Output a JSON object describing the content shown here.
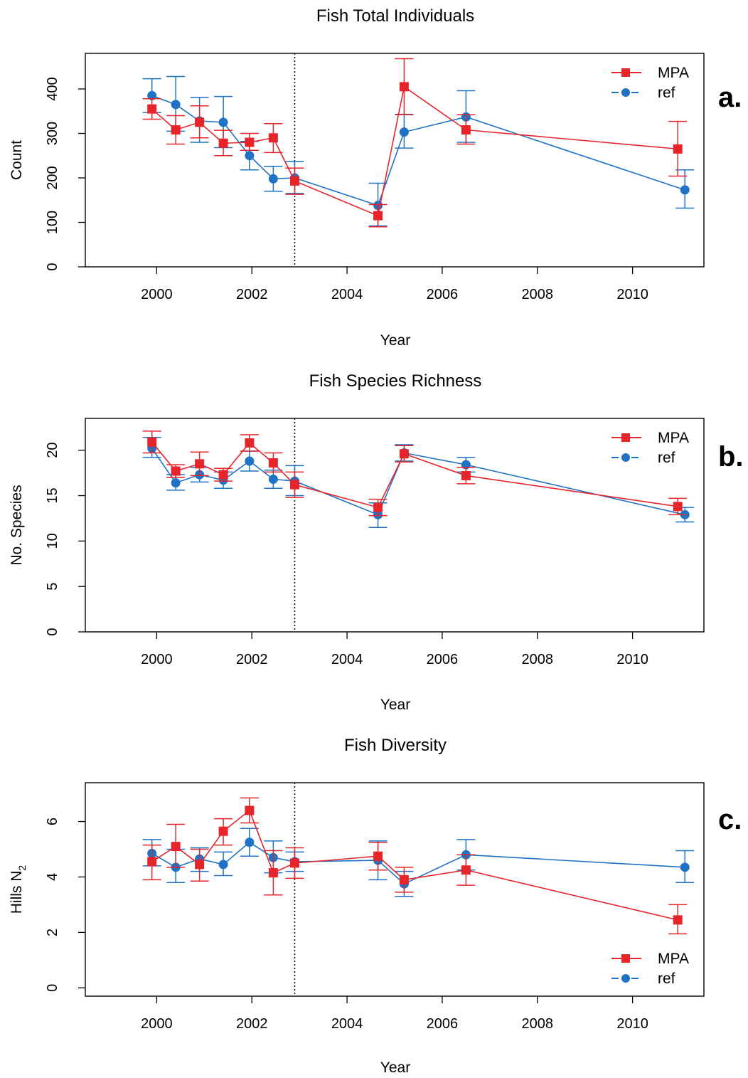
{
  "colors": {
    "mpa": "#e8242b",
    "ref": "#1f72c4",
    "axis": "#000000",
    "vline": "#000000"
  },
  "panels": [
    {
      "title": "Fish Total Individuals",
      "letter": "a.",
      "xlabel": "Year",
      "ylabel_main": "Count",
      "ylabel_sub": ""
    },
    {
      "title": "Fish Species Richness",
      "letter": "b.",
      "xlabel": "Year",
      "ylabel_main": "No. Species",
      "ylabel_sub": ""
    },
    {
      "title": "Fish Diversity",
      "letter": "c.",
      "xlabel": "Year",
      "ylabel_main": "Hills N",
      "ylabel_sub": "2"
    }
  ],
  "chart_data": [
    {
      "type": "line",
      "title": "Fish Total Individuals",
      "xlabel": "Year",
      "ylabel": "Count",
      "xlim": [
        1998.5,
        2011.5
      ],
      "ylim": [
        0,
        480
      ],
      "xticks": [
        2000,
        2002,
        2004,
        2006,
        2008,
        2010
      ],
      "yticks": [
        0,
        100,
        200,
        300,
        400
      ],
      "vline": 2002.9,
      "legend_position": "top-right",
      "series": [
        {
          "name": "MPA",
          "marker": "square",
          "color": "#e8242b",
          "x": [
            1999.9,
            2000.4,
            2000.9,
            2001.4,
            2001.95,
            2002.45,
            2002.9,
            2004.65,
            2005.2,
            2006.5,
            2010.95
          ],
          "y": [
            355,
            308,
            325,
            278,
            280,
            290,
            193,
            115,
            405,
            308,
            265
          ],
          "err_low": [
            332,
            276,
            290,
            250,
            262,
            257,
            163,
            90,
            342,
            276,
            204
          ],
          "err_high": [
            378,
            340,
            362,
            307,
            300,
            322,
            222,
            140,
            468,
            342,
            327
          ]
        },
        {
          "name": "ref",
          "marker": "circle",
          "color": "#1f72c4",
          "x": [
            1999.9,
            2000.4,
            2000.9,
            2001.4,
            2001.95,
            2002.45,
            2002.9,
            2004.65,
            2005.2,
            2006.5,
            2011.1
          ],
          "y": [
            385,
            365,
            328,
            325,
            250,
            198,
            200,
            138,
            303,
            337,
            173
          ],
          "err_low": [
            347,
            305,
            280,
            268,
            218,
            170,
            165,
            92,
            267,
            280,
            132
          ],
          "err_high": [
            423,
            428,
            381,
            383,
            282,
            226,
            237,
            188,
            343,
            396,
            218
          ]
        }
      ]
    },
    {
      "type": "line",
      "title": "Fish Species Richness",
      "xlabel": "Year",
      "ylabel": "No. Species",
      "xlim": [
        1998.5,
        2011.5
      ],
      "ylim": [
        0,
        23.5
      ],
      "xticks": [
        2000,
        2002,
        2004,
        2006,
        2008,
        2010
      ],
      "yticks": [
        0,
        5,
        10,
        15,
        20
      ],
      "vline": 2002.9,
      "legend_position": "top-right",
      "series": [
        {
          "name": "MPA",
          "marker": "square",
          "color": "#e8242b",
          "x": [
            1999.9,
            2000.4,
            2000.9,
            2001.4,
            2001.95,
            2002.45,
            2002.9,
            2004.65,
            2005.2,
            2006.5,
            2010.95
          ],
          "y": [
            20.9,
            17.7,
            18.5,
            17.3,
            20.8,
            18.6,
            16.2,
            13.7,
            19.6,
            17.2,
            13.8
          ],
          "err_low": [
            19.7,
            17.0,
            17.2,
            16.6,
            19.9,
            17.6,
            14.8,
            12.8,
            18.7,
            16.3,
            12.9
          ],
          "err_high": [
            22.1,
            18.4,
            19.8,
            18.0,
            21.7,
            19.7,
            17.6,
            14.6,
            20.5,
            18.1,
            14.7
          ]
        },
        {
          "name": "ref",
          "marker": "circle",
          "color": "#1f72c4",
          "x": [
            1999.9,
            2000.4,
            2000.9,
            2001.4,
            2001.95,
            2002.45,
            2002.9,
            2004.65,
            2005.2,
            2006.5,
            2011.1
          ],
          "y": [
            20.2,
            16.4,
            17.3,
            16.7,
            18.8,
            16.8,
            16.6,
            12.9,
            19.7,
            18.4,
            12.9
          ],
          "err_low": [
            19.2,
            15.6,
            16.5,
            15.8,
            17.7,
            15.8,
            15.0,
            11.5,
            18.8,
            17.6,
            12.1
          ],
          "err_high": [
            21.4,
            17.3,
            18.1,
            17.6,
            19.9,
            17.8,
            18.3,
            14.2,
            20.6,
            19.2,
            13.7
          ]
        }
      ]
    },
    {
      "type": "line",
      "title": "Fish Diversity",
      "xlabel": "Year",
      "ylabel": "Hills N2",
      "xlim": [
        1998.5,
        2011.5
      ],
      "ylim": [
        -0.3,
        7.4
      ],
      "xticks": [
        2000,
        2002,
        2004,
        2006,
        2008,
        2010
      ],
      "yticks": [
        0,
        2,
        4,
        6
      ],
      "vline": 2002.9,
      "legend_position": "bottom-right",
      "series": [
        {
          "name": "MPA",
          "marker": "square",
          "color": "#e8242b",
          "x": [
            1999.9,
            2000.4,
            2000.9,
            2001.4,
            2001.95,
            2002.45,
            2002.9,
            2004.65,
            2005.2,
            2006.5,
            2010.95
          ],
          "y": [
            4.55,
            5.1,
            4.45,
            5.65,
            6.4,
            4.15,
            4.5,
            4.75,
            3.9,
            4.25,
            2.45
          ],
          "err_low": [
            3.9,
            4.35,
            3.85,
            5.15,
            5.95,
            3.35,
            3.95,
            4.25,
            3.45,
            3.7,
            1.95
          ],
          "err_high": [
            5.15,
            5.9,
            5.0,
            6.1,
            6.85,
            4.95,
            5.05,
            5.25,
            4.35,
            4.8,
            3.0
          ]
        },
        {
          "name": "ref",
          "marker": "circle",
          "color": "#1f72c4",
          "x": [
            1999.9,
            2000.4,
            2000.9,
            2001.4,
            2001.95,
            2002.45,
            2002.9,
            2004.65,
            2005.2,
            2006.5,
            2011.1
          ],
          "y": [
            4.85,
            4.35,
            4.65,
            4.45,
            5.25,
            4.7,
            4.55,
            4.6,
            3.75,
            4.8,
            4.35
          ],
          "err_low": [
            4.4,
            3.8,
            4.2,
            4.05,
            4.75,
            4.15,
            4.2,
            3.9,
            3.3,
            4.25,
            3.8
          ],
          "err_high": [
            5.35,
            5.0,
            5.05,
            4.9,
            5.75,
            5.3,
            4.9,
            5.3,
            4.2,
            5.35,
            4.95
          ]
        }
      ]
    }
  ]
}
